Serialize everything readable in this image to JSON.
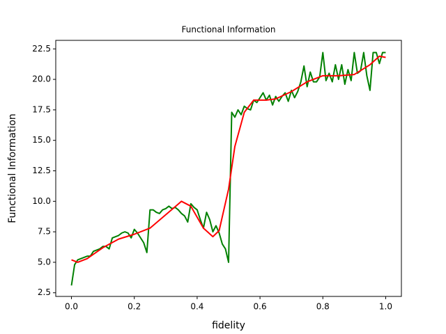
{
  "chart_data": {
    "type": "line",
    "title": "Functional Information",
    "xlabel": "fidelity",
    "ylabel": "Functional Information",
    "xlim": [
      -0.05,
      1.05
    ],
    "ylim": [
      2.2,
      23.2
    ],
    "xticks": [
      {
        "value": 0,
        "label": "0.0"
      },
      {
        "value": 0.2,
        "label": "0.2"
      },
      {
        "value": 0.4,
        "label": "0.4"
      },
      {
        "value": 0.6,
        "label": "0.6"
      },
      {
        "value": 0.8,
        "label": "0.8"
      },
      {
        "value": 1,
        "label": "1.0"
      }
    ],
    "yticks": [
      2.5,
      {
        "value": 5,
        "label": "5.0"
      },
      7.5,
      {
        "value": 10,
        "label": "10.0"
      },
      12.5,
      {
        "value": 15,
        "label": "15.0"
      },
      17.5,
      {
        "value": 20,
        "label": "20.0"
      },
      22.5
    ],
    "grid": false,
    "series": [
      {
        "color": "#008000",
        "x": [
          0,
          0.01,
          0.02,
          0.03,
          0.04,
          0.05,
          0.06,
          0.07,
          0.08,
          0.09,
          0.1,
          0.11,
          0.12,
          0.13,
          0.14,
          0.15,
          0.16,
          0.17,
          0.18,
          0.19,
          0.2,
          0.21,
          0.22,
          0.23,
          0.24,
          0.25,
          0.26,
          0.27,
          0.28,
          0.29,
          0.3,
          0.31,
          0.32,
          0.33,
          0.34,
          0.35,
          0.36,
          0.37,
          0.38,
          0.39,
          0.4,
          0.41,
          0.42,
          0.43,
          0.44,
          0.45,
          0.46,
          0.47,
          0.48,
          0.49,
          0.5,
          0.51,
          0.52,
          0.53,
          0.54,
          0.55,
          0.56,
          0.57,
          0.58,
          0.59,
          0.6,
          0.61,
          0.62,
          0.63,
          0.64,
          0.65,
          0.66,
          0.67,
          0.68,
          0.69,
          0.7,
          0.71,
          0.72,
          0.73,
          0.74,
          0.75,
          0.76,
          0.77,
          0.78,
          0.79,
          0.8,
          0.81,
          0.82,
          0.83,
          0.84,
          0.85,
          0.86,
          0.87,
          0.88,
          0.89,
          0.9,
          0.91,
          0.92,
          0.93,
          0.94,
          0.95,
          0.96,
          0.97,
          0.98,
          0.99,
          1
        ],
        "values": [
          3.1,
          4.8,
          5.2,
          5.3,
          5.4,
          5.5,
          5.5,
          5.9,
          6.0,
          6.1,
          6.3,
          6.3,
          6.1,
          7.0,
          7.1,
          7.2,
          7.4,
          7.5,
          7.4,
          7.0,
          7.7,
          7.4,
          7.0,
          6.6,
          5.8,
          9.3,
          9.3,
          9.1,
          9.0,
          9.3,
          9.4,
          9.6,
          9.4,
          9.5,
          9.3,
          9.0,
          8.8,
          8.3,
          9.8,
          9.5,
          9.3,
          8.5,
          7.8,
          9.1,
          8.5,
          7.5,
          8.0,
          7.4,
          6.5,
          6.1,
          5.0,
          17.3,
          16.9,
          17.5,
          17.1,
          17.8,
          17.6,
          17.5,
          18.3,
          18.1,
          18.5,
          18.9,
          18.3,
          18.7,
          17.9,
          18.6,
          18.2,
          18.6,
          18.9,
          18.2,
          19.1,
          18.5,
          19.0,
          19.8,
          21.1,
          19.4,
          20.6,
          19.8,
          19.8,
          20.2,
          22.2,
          19.9,
          20.5,
          19.8,
          21.2,
          20.0,
          21.2,
          19.6,
          20.8,
          19.9,
          22.2,
          20.5,
          20.7,
          22.2,
          20.3,
          19.1,
          22.2,
          22.2,
          21.3,
          22.2,
          22.2
        ]
      },
      {
        "color": "#ff0000",
        "x": [
          0,
          0.02,
          0.05,
          0.1,
          0.15,
          0.2,
          0.25,
          0.3,
          0.35,
          0.38,
          0.42,
          0.45,
          0.47,
          0.5,
          0.52,
          0.55,
          0.58,
          0.62,
          0.65,
          0.7,
          0.75,
          0.8,
          0.85,
          0.9,
          0.95,
          0.98,
          1
        ],
        "values": [
          5.2,
          5.0,
          5.3,
          6.2,
          6.9,
          7.3,
          7.8,
          8.9,
          10.0,
          9.6,
          7.8,
          7.1,
          7.6,
          11.0,
          14.5,
          17.3,
          18.3,
          18.3,
          18.4,
          19.0,
          19.8,
          20.3,
          20.3,
          20.4,
          21.2,
          21.9,
          21.8
        ]
      }
    ]
  }
}
